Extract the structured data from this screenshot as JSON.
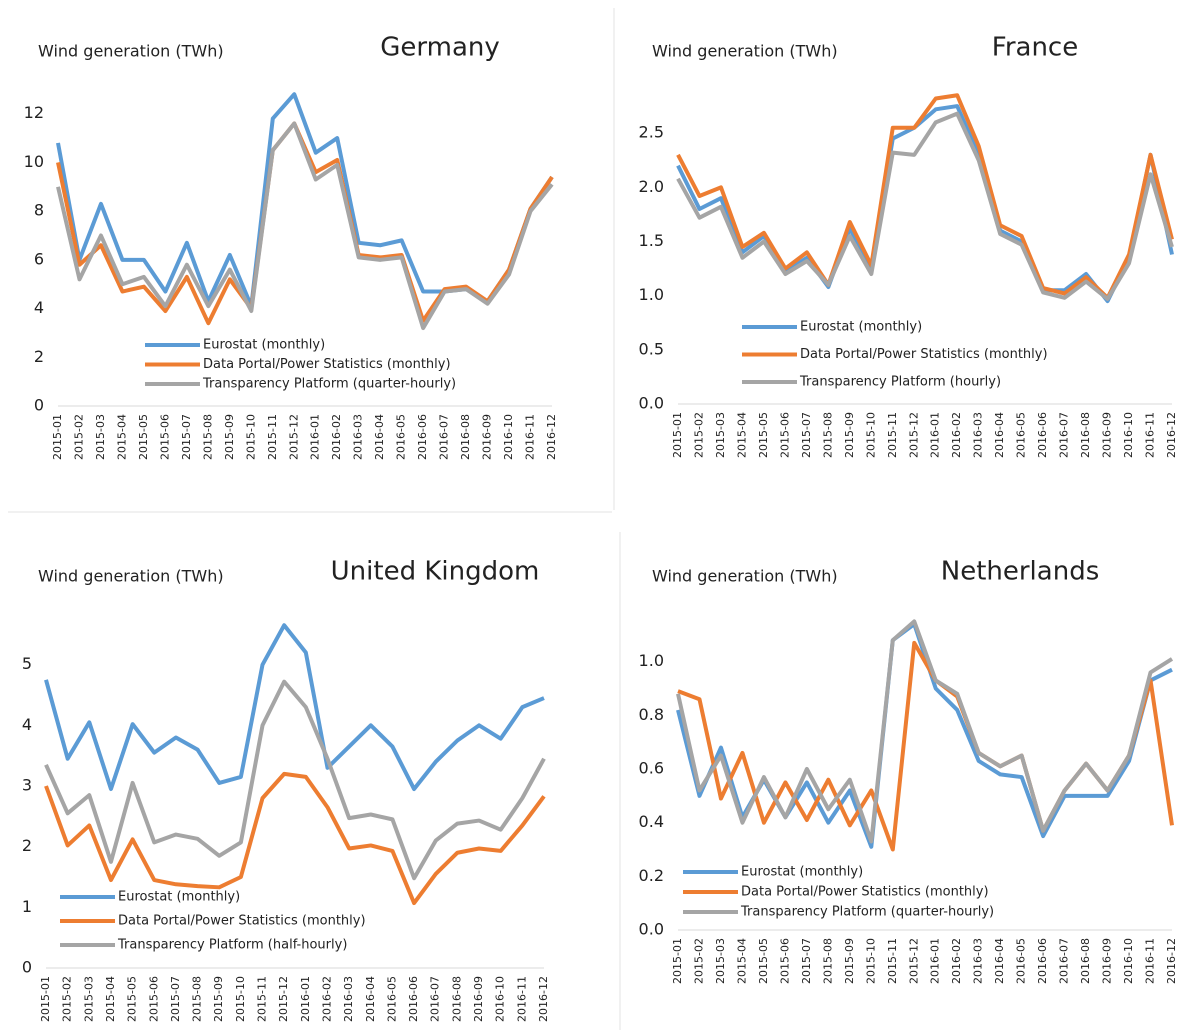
{
  "chart_data": [
    {
      "type": "line",
      "title": "Germany",
      "y_label": "Wind generation (TWh)",
      "categories": [
        "2015-01",
        "2015-02",
        "2015-03",
        "2015-04",
        "2015-05",
        "2015-06",
        "2015-07",
        "2015-08",
        "2015-09",
        "2015-10",
        "2015-11",
        "2015-12",
        "2016-01",
        "2016-02",
        "2016-03",
        "2016-04",
        "2016-05",
        "2016-06",
        "2016-07",
        "2016-08",
        "2016-09",
        "2016-10",
        "2016-11",
        "2016-12"
      ],
      "series": [
        {
          "name": "Eurostat (monthly)",
          "color": "#5b9bd5",
          "values": [
            10.8,
            6.0,
            8.3,
            6.0,
            6.0,
            4.7,
            6.7,
            4.3,
            6.2,
            4.1,
            11.8,
            12.8,
            10.4,
            11.0,
            6.7,
            6.6,
            6.8,
            4.7,
            4.7,
            4.8,
            4.3,
            5.6,
            8.1,
            9.4
          ]
        },
        {
          "name": "Data Portal/Power Statistics (monthly)",
          "color": "#ed7d31",
          "values": [
            10.0,
            5.8,
            6.6,
            4.7,
            4.9,
            3.9,
            5.3,
            3.4,
            5.2,
            4.0,
            10.5,
            11.6,
            9.6,
            10.1,
            6.2,
            6.1,
            6.2,
            3.5,
            4.8,
            4.9,
            4.3,
            5.6,
            8.1,
            9.4
          ]
        },
        {
          "name": "Transparency Platform (quarter-hourly)",
          "color": "#a5a5a5",
          "values": [
            9.0,
            5.2,
            7.0,
            5.0,
            5.3,
            4.1,
            5.8,
            4.1,
            5.6,
            3.9,
            10.5,
            11.6,
            9.3,
            9.9,
            6.1,
            6.0,
            6.1,
            3.2,
            4.7,
            4.8,
            4.2,
            5.4,
            8.0,
            9.1
          ]
        }
      ],
      "ylim": [
        0,
        14
      ],
      "yticks": [
        0,
        2,
        4,
        6,
        8,
        10,
        12
      ],
      "legend": "lower center"
    },
    {
      "type": "line",
      "title": "France",
      "y_label": "Wind generation (TWh)",
      "categories": [
        "2015-01",
        "2015-02",
        "2015-03",
        "2015-04",
        "2015-05",
        "2015-06",
        "2015-07",
        "2015-08",
        "2015-09",
        "2015-10",
        "2015-11",
        "2015-12",
        "2016-01",
        "2016-02",
        "2016-03",
        "2016-04",
        "2016-05",
        "2016-06",
        "2016-07",
        "2016-08",
        "2016-09",
        "2016-10",
        "2016-11",
        "2016-12"
      ],
      "series": [
        {
          "name": "Eurostat (monthly)",
          "color": "#5b9bd5",
          "values": [
            2.2,
            1.8,
            1.9,
            1.4,
            1.55,
            1.22,
            1.35,
            1.08,
            1.62,
            1.25,
            2.45,
            2.55,
            2.72,
            2.75,
            2.3,
            1.6,
            1.5,
            1.05,
            1.05,
            1.2,
            0.95,
            1.35,
            2.3,
            1.38
          ]
        },
        {
          "name": "Data Portal/Power Statistics (monthly)",
          "color": "#ed7d31",
          "values": [
            2.3,
            1.92,
            2.0,
            1.45,
            1.58,
            1.25,
            1.4,
            1.1,
            1.68,
            1.28,
            2.55,
            2.55,
            2.82,
            2.85,
            2.38,
            1.65,
            1.55,
            1.07,
            1.02,
            1.17,
            0.98,
            1.38,
            2.3,
            1.52
          ]
        },
        {
          "name": "Transparency Platform (hourly)",
          "color": "#a5a5a5",
          "values": [
            2.08,
            1.72,
            1.82,
            1.35,
            1.5,
            1.2,
            1.32,
            1.1,
            1.55,
            1.2,
            2.32,
            2.3,
            2.6,
            2.68,
            2.25,
            1.57,
            1.47,
            1.03,
            0.98,
            1.13,
            0.97,
            1.3,
            2.12,
            1.45
          ]
        }
      ],
      "ylim": [
        0,
        3
      ],
      "yticks": [
        {
          "value": 0,
          "label": "0.0"
        },
        0.5,
        {
          "value": 1,
          "label": "1.0"
        },
        1.5,
        {
          "value": 2,
          "label": "2.0"
        },
        2.5
      ],
      "legend": "lower left"
    },
    {
      "type": "line",
      "title": "United Kingdom",
      "y_label": "Wind generation (TWh)",
      "categories": [
        "2015-01",
        "2015-02",
        "2015-03",
        "2015-04",
        "2015-05",
        "2015-06",
        "2015-07",
        "2015-08",
        "2015-09",
        "2015-10",
        "2015-11",
        "2015-12",
        "2016-01",
        "2016-02",
        "2016-03",
        "2016-04",
        "2016-05",
        "2016-06",
        "2016-07",
        "2016-08",
        "2016-09",
        "2016-10",
        "2016-11",
        "2016-12"
      ],
      "series": [
        {
          "name": "Eurostat (monthly)",
          "color": "#5b9bd5",
          "values": [
            4.75,
            3.45,
            4.05,
            2.95,
            4.02,
            3.55,
            3.8,
            3.6,
            3.05,
            3.15,
            5.0,
            5.65,
            5.2,
            3.3,
            3.65,
            4.0,
            3.65,
            2.95,
            3.4,
            3.75,
            4.0,
            3.78,
            4.3,
            4.45
          ]
        },
        {
          "name": "Data Portal/Power Statistics (monthly)",
          "color": "#ed7d31",
          "values": [
            3.0,
            2.02,
            2.35,
            1.45,
            2.12,
            1.45,
            1.38,
            1.35,
            1.33,
            1.5,
            2.8,
            3.2,
            3.15,
            2.65,
            1.97,
            2.02,
            1.93,
            1.07,
            1.55,
            1.9,
            1.97,
            1.93,
            2.35,
            2.83
          ]
        },
        {
          "name": "Transparency Platform (half-hourly)",
          "color": "#a5a5a5",
          "values": [
            3.35,
            2.55,
            2.85,
            1.75,
            3.05,
            2.07,
            2.2,
            2.13,
            1.85,
            2.07,
            4.0,
            4.72,
            4.3,
            3.45,
            2.47,
            2.53,
            2.45,
            1.48,
            2.1,
            2.38,
            2.43,
            2.28,
            2.8,
            3.45
          ]
        }
      ],
      "ylim": [
        0,
        6
      ],
      "yticks": [
        0,
        1,
        2,
        3,
        4,
        5
      ],
      "legend": "lower left"
    },
    {
      "type": "line",
      "title": "Netherlands",
      "y_label": "Wind generation (TWh)",
      "categories": [
        "2015-01",
        "2015-02",
        "2015-03",
        "2015-04",
        "2015-05",
        "2015-06",
        "2015-07",
        "2015-08",
        "2015-09",
        "2015-10",
        "2015-11",
        "2015-12",
        "2016-01",
        "2016-02",
        "2016-03",
        "2016-04",
        "2016-05",
        "2016-06",
        "2016-07",
        "2016-08",
        "2016-09",
        "2016-10",
        "2016-11",
        "2016-12"
      ],
      "series": [
        {
          "name": "Eurostat (monthly)",
          "color": "#5b9bd5",
          "values": [
            0.82,
            0.5,
            0.68,
            0.42,
            0.56,
            0.42,
            0.55,
            0.4,
            0.52,
            0.31,
            1.08,
            1.14,
            0.9,
            0.82,
            0.63,
            0.58,
            0.57,
            0.35,
            0.5,
            0.5,
            0.5,
            0.63,
            0.93,
            0.97
          ]
        },
        {
          "name": "Data Portal/Power Statistics (monthly)",
          "color": "#ed7d31",
          "values": [
            0.89,
            0.86,
            0.49,
            0.66,
            0.4,
            0.55,
            0.41,
            0.56,
            0.39,
            0.52,
            0.3,
            1.07,
            0.93,
            0.87,
            0.66,
            0.61,
            0.65,
            0.37,
            0.52,
            0.62,
            0.52,
            0.65,
            0.93,
            0.39
          ]
        },
        {
          "name": "Transparency Platform (quarter-hourly)",
          "color": "#a5a5a5",
          "values": [
            0.88,
            0.52,
            0.65,
            0.4,
            0.57,
            0.42,
            0.6,
            0.45,
            0.56,
            0.33,
            1.08,
            1.15,
            0.93,
            0.88,
            0.66,
            0.61,
            0.65,
            0.37,
            0.52,
            0.62,
            0.52,
            0.65,
            0.96,
            1.01
          ]
        }
      ],
      "ylim": [
        0,
        1.2
      ],
      "yticks": [
        {
          "value": 0,
          "label": "0.0"
        },
        0.2,
        0.4,
        0.6,
        0.8,
        {
          "value": 1,
          "label": "1.0"
        }
      ],
      "legend": "lower left"
    }
  ]
}
